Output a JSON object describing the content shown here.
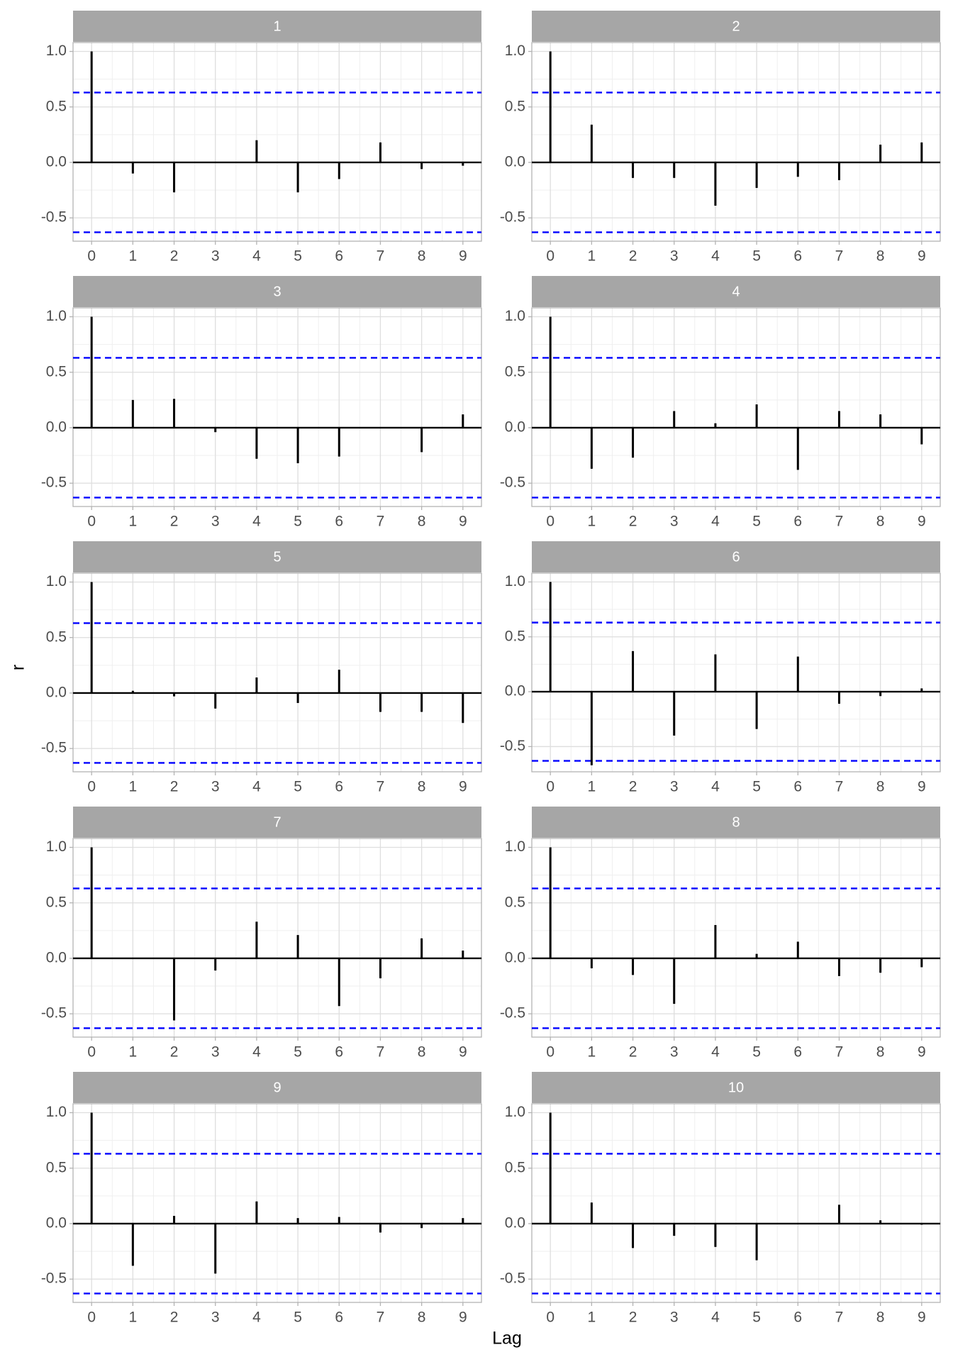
{
  "axis_labels": {
    "x": "Lag",
    "y": "r"
  },
  "chart_data": [
    {
      "type": "acf",
      "title": "1",
      "x": [
        0,
        1,
        2,
        3,
        4,
        5,
        6,
        7,
        8,
        9
      ],
      "values": [
        1,
        -0.1,
        -0.27,
        0,
        0.2,
        -0.27,
        -0.15,
        0.18,
        -0.06,
        -0.03
      ],
      "color": "#000000",
      "ci": [
        0.63,
        -0.63
      ],
      "ci_color": "#0000ff",
      "xlim": [
        -0.45,
        9.45
      ],
      "xticks": [
        0,
        1,
        2,
        3,
        4,
        5,
        6,
        7,
        8,
        9
      ],
      "ylim": [
        -0.71,
        1.08
      ],
      "yticks": [
        -0.5,
        {
          "value": 0,
          "label": "0.0"
        },
        0.5,
        {
          "value": 1,
          "label": "1.0"
        }
      ],
      "grid": true
    },
    {
      "type": "acf",
      "title": "2",
      "x": [
        0,
        1,
        2,
        3,
        4,
        5,
        6,
        7,
        8,
        9
      ],
      "values": [
        1,
        0.34,
        -0.14,
        -0.14,
        -0.39,
        -0.23,
        -0.13,
        -0.16,
        0.16,
        0.18
      ],
      "color": "#000000",
      "ci": [
        0.63,
        -0.63
      ],
      "ci_color": "#0000ff",
      "xlim": [
        -0.45,
        9.45
      ],
      "xticks": [
        0,
        1,
        2,
        3,
        4,
        5,
        6,
        7,
        8,
        9
      ],
      "ylim": [
        -0.71,
        1.08
      ],
      "yticks": [
        -0.5,
        {
          "value": 0,
          "label": "0.0"
        },
        0.5,
        {
          "value": 1,
          "label": "1.0"
        }
      ],
      "grid": true
    },
    {
      "type": "acf",
      "title": "3",
      "x": [
        0,
        1,
        2,
        3,
        4,
        5,
        6,
        7,
        8,
        9
      ],
      "values": [
        1,
        0.25,
        0.26,
        -0.04,
        -0.28,
        -0.32,
        -0.26,
        0,
        -0.22,
        0.12
      ],
      "color": "#000000",
      "ci": [
        0.63,
        -0.63
      ],
      "ci_color": "#0000ff",
      "xlim": [
        -0.45,
        9.45
      ],
      "xticks": [
        0,
        1,
        2,
        3,
        4,
        5,
        6,
        7,
        8,
        9
      ],
      "ylim": [
        -0.71,
        1.08
      ],
      "yticks": [
        -0.5,
        {
          "value": 0,
          "label": "0.0"
        },
        0.5,
        {
          "value": 1,
          "label": "1.0"
        }
      ],
      "grid": true
    },
    {
      "type": "acf",
      "title": "4",
      "x": [
        0,
        1,
        2,
        3,
        4,
        5,
        6,
        7,
        8,
        9
      ],
      "values": [
        1,
        -0.37,
        -0.27,
        0.15,
        0.04,
        0.21,
        -0.38,
        0.15,
        0.12,
        -0.15
      ],
      "color": "#000000",
      "ci": [
        0.63,
        -0.63
      ],
      "ci_color": "#0000ff",
      "xlim": [
        -0.45,
        9.45
      ],
      "xticks": [
        0,
        1,
        2,
        3,
        4,
        5,
        6,
        7,
        8,
        9
      ],
      "ylim": [
        -0.71,
        1.08
      ],
      "yticks": [
        -0.5,
        {
          "value": 0,
          "label": "0.0"
        },
        0.5,
        {
          "value": 1,
          "label": "1.0"
        }
      ],
      "grid": true
    },
    {
      "type": "acf",
      "title": "5",
      "x": [
        0,
        1,
        2,
        3,
        4,
        5,
        6,
        7,
        8,
        9
      ],
      "values": [
        1,
        0.02,
        -0.03,
        -0.14,
        0.14,
        -0.09,
        0.21,
        -0.17,
        -0.17,
        -0.27
      ],
      "color": "#000000",
      "ci": [
        0.63,
        -0.63
      ],
      "ci_color": "#0000ff",
      "xlim": [
        -0.45,
        9.45
      ],
      "xticks": [
        0,
        1,
        2,
        3,
        4,
        5,
        6,
        7,
        8,
        9
      ],
      "ylim": [
        -0.71,
        1.08
      ],
      "yticks": [
        -0.5,
        {
          "value": 0,
          "label": "0.0"
        },
        0.5,
        {
          "value": 1,
          "label": "1.0"
        }
      ],
      "grid": true
    },
    {
      "type": "acf",
      "title": "6",
      "x": [
        0,
        1,
        2,
        3,
        4,
        5,
        6,
        7,
        8,
        9
      ],
      "values": [
        1,
        -0.67,
        0.37,
        -0.4,
        0.34,
        -0.34,
        0.32,
        -0.11,
        -0.04,
        0.03
      ],
      "color": "#000000",
      "ci": [
        0.63,
        -0.63
      ],
      "ci_color": "#0000ff",
      "xlim": [
        -0.45,
        9.45
      ],
      "xticks": [
        0,
        1,
        2,
        3,
        4,
        5,
        6,
        7,
        8,
        9
      ],
      "ylim": [
        -0.73,
        1.08
      ],
      "yticks": [
        -0.5,
        {
          "value": 0,
          "label": "0.0"
        },
        0.5,
        {
          "value": 1,
          "label": "1.0"
        }
      ],
      "grid": true
    },
    {
      "type": "acf",
      "title": "7",
      "x": [
        0,
        1,
        2,
        3,
        4,
        5,
        6,
        7,
        8,
        9
      ],
      "values": [
        1,
        0,
        -0.56,
        -0.11,
        0.33,
        0.21,
        -0.43,
        -0.18,
        0.18,
        0.07
      ],
      "color": "#000000",
      "ci": [
        0.63,
        -0.63
      ],
      "ci_color": "#0000ff",
      "xlim": [
        -0.45,
        9.45
      ],
      "xticks": [
        0,
        1,
        2,
        3,
        4,
        5,
        6,
        7,
        8,
        9
      ],
      "ylim": [
        -0.71,
        1.08
      ],
      "yticks": [
        -0.5,
        {
          "value": 0,
          "label": "0.0"
        },
        0.5,
        {
          "value": 1,
          "label": "1.0"
        }
      ],
      "grid": true
    },
    {
      "type": "acf",
      "title": "8",
      "x": [
        0,
        1,
        2,
        3,
        4,
        5,
        6,
        7,
        8,
        9
      ],
      "values": [
        1,
        -0.09,
        -0.15,
        -0.41,
        0.3,
        0.04,
        0.15,
        -0.16,
        -0.13,
        -0.08
      ],
      "color": "#000000",
      "ci": [
        0.63,
        -0.63
      ],
      "ci_color": "#0000ff",
      "xlim": [
        -0.45,
        9.45
      ],
      "xticks": [
        0,
        1,
        2,
        3,
        4,
        5,
        6,
        7,
        8,
        9
      ],
      "ylim": [
        -0.71,
        1.08
      ],
      "yticks": [
        -0.5,
        {
          "value": 0,
          "label": "0.0"
        },
        0.5,
        {
          "value": 1,
          "label": "1.0"
        }
      ],
      "grid": true
    },
    {
      "type": "acf",
      "title": "9",
      "x": [
        0,
        1,
        2,
        3,
        4,
        5,
        6,
        7,
        8,
        9
      ],
      "values": [
        1,
        -0.38,
        0.07,
        -0.45,
        0.2,
        0.05,
        0.06,
        -0.08,
        -0.04,
        0.05
      ],
      "color": "#000000",
      "ci": [
        0.63,
        -0.63
      ],
      "ci_color": "#0000ff",
      "xlim": [
        -0.45,
        9.45
      ],
      "xticks": [
        0,
        1,
        2,
        3,
        4,
        5,
        6,
        7,
        8,
        9
      ],
      "ylim": [
        -0.71,
        1.08
      ],
      "yticks": [
        -0.5,
        {
          "value": 0,
          "label": "0.0"
        },
        0.5,
        {
          "value": 1,
          "label": "1.0"
        }
      ],
      "grid": true
    },
    {
      "type": "acf",
      "title": "10",
      "x": [
        0,
        1,
        2,
        3,
        4,
        5,
        6,
        7,
        8,
        9
      ],
      "values": [
        1,
        0.19,
        -0.22,
        -0.11,
        -0.21,
        -0.33,
        0,
        0.17,
        0.03,
        -0.01
      ],
      "color": "#000000",
      "ci": [
        0.63,
        -0.63
      ],
      "ci_color": "#0000ff",
      "xlim": [
        -0.45,
        9.45
      ],
      "xticks": [
        0,
        1,
        2,
        3,
        4,
        5,
        6,
        7,
        8,
        9
      ],
      "ylim": [
        -0.71,
        1.08
      ],
      "yticks": [
        -0.5,
        {
          "value": 0,
          "label": "0.0"
        },
        0.5,
        {
          "value": 1,
          "label": "1.0"
        }
      ],
      "grid": true
    }
  ]
}
